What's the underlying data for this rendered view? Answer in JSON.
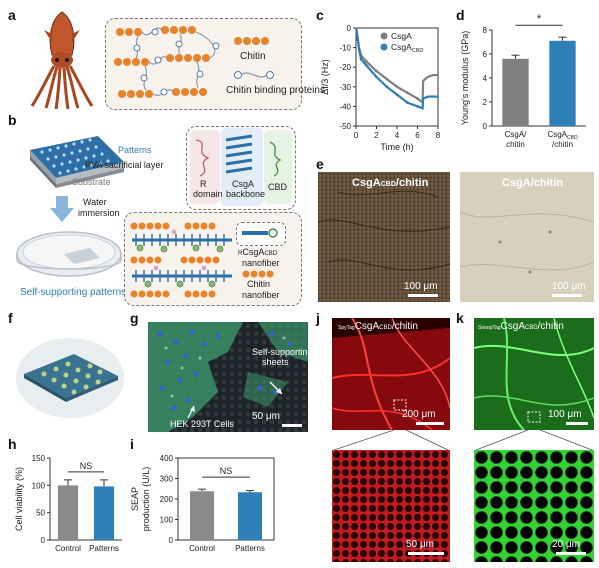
{
  "panels": {
    "a": "a",
    "b": "b",
    "c": "c",
    "d": "d",
    "e": "e",
    "f": "f",
    "g": "g",
    "h": "h",
    "i": "i",
    "j": "j",
    "k": "k"
  },
  "panel_a": {
    "legend_chitin": "Chitin",
    "legend_cbp": "Chitin binding proteins"
  },
  "panel_b": {
    "patterns": "Patterns",
    "pva": "PVA sacrificial layer",
    "substrate": "Substrate",
    "water": "Water",
    "immersion": "immersion",
    "self_supporting": "Self-supporting patterns",
    "r_domain_1": "R",
    "r_domain_2": "domain",
    "csga_backbone_1": "CsgA",
    "csga_backbone_2": "backbone",
    "cbd": "CBD",
    "nanofiber_name": "CsgA",
    "nanofiber_sub": "CBD",
    "nanofiber_pre": "R",
    "nanofiber_word": "nanofiber",
    "chitin_1": "Chitin",
    "chitin_2": "nanofiber"
  },
  "panel_e": {
    "left_title": "CsgA",
    "left_sub": "CBD",
    "left_tail": "/chitin",
    "right_title": "CsgA/chitin",
    "scale_left": "100 μm",
    "scale_right": "100 μm"
  },
  "panel_g": {
    "self_supporting_1": "Self-supporting",
    "self_supporting_2": "sheets",
    "cells": "HEK 293T Cells",
    "scale": "50 μm"
  },
  "panel_j": {
    "prefix": "SpyTag",
    "title": "CsgA",
    "sub": "CBD",
    "tail": "/chitin",
    "scale_top": "200 μm",
    "scale_bottom": "50 μm"
  },
  "panel_k": {
    "prefix": "SnoopTag",
    "title": "CsgA",
    "sub": "CBD",
    "tail": "/chitin",
    "scale_top": "100 μm",
    "scale_bottom": "20 μm"
  },
  "chart_c": {
    "type": "line",
    "ylabel": "Δf/3 (Hz)",
    "xlabel": "Time (h)",
    "xlim": [
      0,
      8
    ],
    "ylim": [
      -50,
      0
    ],
    "xticks": [
      "0",
      "2",
      "4",
      "6",
      "8"
    ],
    "yticks": [
      "0",
      "-10",
      "-20",
      "-30",
      "-40",
      "-50"
    ],
    "series": [
      {
        "name": "CsgA",
        "sub": "",
        "color": "#7f7f7f",
        "x": [
          0,
          0.05,
          0.3,
          0.5,
          1,
          2,
          3,
          4,
          5,
          6,
          6.5,
          6.55,
          7,
          7.5,
          8
        ],
        "y": [
          0,
          -1,
          -10,
          -14,
          -17,
          -22,
          -26,
          -30,
          -33,
          -36,
          -38,
          -27,
          -25,
          -24,
          -24
        ]
      },
      {
        "name": "CsgA",
        "sub": "CBD",
        "color": "#2f7fb8",
        "x": [
          0,
          0.05,
          0.3,
          0.5,
          1,
          2,
          3,
          4,
          5,
          6,
          6.5,
          6.55,
          7,
          7.5,
          8
        ],
        "y": [
          0,
          -1,
          -11,
          -16,
          -19,
          -25,
          -30,
          -34,
          -38,
          -40,
          -41,
          -36,
          -35,
          -35,
          -35
        ]
      }
    ]
  },
  "chart_d": {
    "type": "bar",
    "ylabel": "Young's modulus (GPa)",
    "ylim": [
      0,
      8
    ],
    "yticks": [
      "0",
      "2",
      "4",
      "6",
      "8"
    ],
    "categories": [
      {
        "line1": "CsgA/",
        "line2": "chitin",
        "sub": ""
      },
      {
        "line1": "CsgA",
        "line2": "/chitin",
        "sub": "CBD"
      }
    ],
    "values": [
      5.6,
      7.1
    ],
    "errors": [
      0.3,
      0.3
    ],
    "colors": [
      "#7f7f7f",
      "#2f7fb8"
    ],
    "significance": "*"
  },
  "chart_h": {
    "type": "bar",
    "ylabel": "Cell viability (%)",
    "ylim": [
      0,
      150
    ],
    "yticks": [
      "0",
      "50",
      "100",
      "150"
    ],
    "categories": [
      "Control",
      "Patterns"
    ],
    "values": [
      100,
      98
    ],
    "errors": [
      10,
      12
    ],
    "colors": [
      "#8a8a8a",
      "#2f7fb8"
    ],
    "significance": "NS"
  },
  "chart_i": {
    "type": "bar",
    "ylabel_1": "SEAP",
    "ylabel_2": "production (U/L)",
    "ylim": [
      0,
      400
    ],
    "yticks": [
      "0",
      "100",
      "200",
      "300",
      "400"
    ],
    "categories": [
      "Control",
      "Patterns"
    ],
    "values": [
      238,
      233
    ],
    "errors": [
      10,
      8
    ],
    "colors": [
      "#8a8a8a",
      "#2f7fb8"
    ],
    "significance": "NS"
  }
}
